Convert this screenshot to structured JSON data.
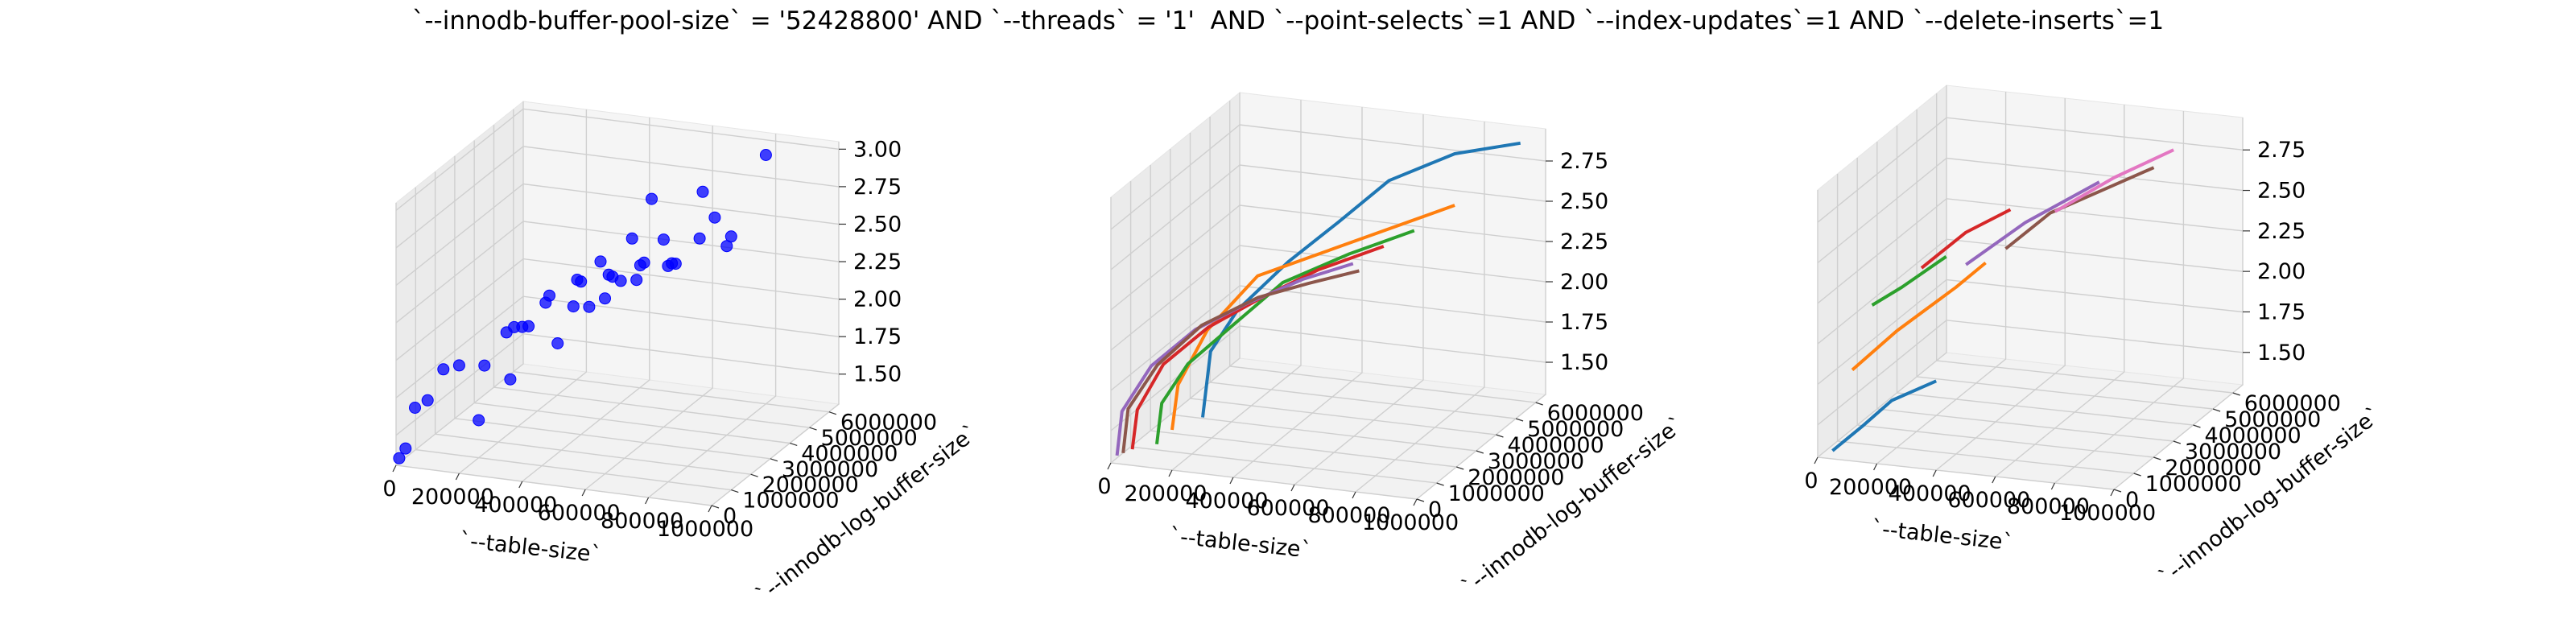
{
  "figure": {
    "title": "`--innodb-buffer-pool-size` = '52428800' AND `--threads` = '1'  AND `--point-selects`=1 AND `--index-updates`=1 AND `--delete-inserts`=1"
  },
  "chart_data": [
    {
      "type": "scatter3d",
      "xlabel": "`--table-size`",
      "ylabel": "`--innodb-log-buffer-size`",
      "zlabel": "",
      "xlim": [
        0,
        1000000
      ],
      "ylim": [
        0,
        6500000
      ],
      "zlim": [
        1.3,
        3.05
      ],
      "x_ticks": [
        "0",
        "200000",
        "400000",
        "600000",
        "800000",
        "1000000"
      ],
      "y_ticks": [
        "0",
        "1000000",
        "2000000",
        "3000000",
        "4000000",
        "5000000",
        "6000000"
      ],
      "z_ticks": [
        "1.50",
        "1.75",
        "2.00",
        "2.25",
        "2.50",
        "2.75",
        "3.00"
      ],
      "grid": true,
      "color": "#0000ff",
      "points": [
        [
          10000,
          0,
          1.35
        ],
        [
          30000,
          0,
          1.42
        ],
        [
          60000,
          0,
          1.7
        ],
        [
          100000,
          0,
          1.76
        ],
        [
          150000,
          0,
          1.98
        ],
        [
          200000,
          0,
          2.02
        ],
        [
          280000,
          0,
          2.04
        ],
        [
          350000,
          0,
          2.28
        ],
        [
          400000,
          0,
          2.33
        ],
        [
          420000,
          0,
          2.34
        ],
        [
          200000,
          1000000,
          1.55
        ],
        [
          300000,
          1000000,
          1.85
        ],
        [
          450000,
          1000000,
          2.13
        ],
        [
          500000,
          1000000,
          2.39
        ],
        [
          550000,
          1000000,
          2.4
        ],
        [
          600000,
          1000000,
          2.47
        ],
        [
          650000,
          1000000,
          2.6
        ],
        [
          700000,
          1000000,
          2.62
        ],
        [
          800000,
          1000000,
          2.74
        ],
        [
          900000,
          1000000,
          2.95
        ],
        [
          1000000,
          1000000,
          2.99
        ],
        [
          250000,
          2000000,
          2.08
        ],
        [
          350000,
          2000000,
          2.27
        ],
        [
          450000,
          2000000,
          2.45
        ],
        [
          550000,
          2000000,
          2.51
        ],
        [
          650000,
          2000000,
          2.6
        ],
        [
          750000,
          2000000,
          2.64
        ],
        [
          300000,
          3000000,
          2.2
        ],
        [
          400000,
          3000000,
          2.32
        ],
        [
          500000,
          3000000,
          2.38
        ],
        [
          600000,
          3000000,
          2.5
        ],
        [
          700000,
          3000000,
          2.52
        ],
        [
          400000,
          4000000,
          2.35
        ],
        [
          500000,
          4000000,
          2.53
        ],
        [
          600000,
          4000000,
          2.55
        ],
        [
          800000,
          4000000,
          2.56
        ],
        [
          500000,
          5000000,
          2.69
        ],
        [
          700000,
          5000000,
          2.62
        ],
        [
          600000,
          6000000,
          2.66
        ],
        [
          800000,
          6000000,
          2.96
        ]
      ]
    },
    {
      "type": "line3d",
      "xlabel": "`--table-size`",
      "ylabel": "`--innodb-log-buffer-size`",
      "zlabel": "",
      "xlim": [
        0,
        1000000
      ],
      "ylim": [
        0,
        6500000
      ],
      "zlim": [
        1.3,
        2.95
      ],
      "x_ticks": [
        "0",
        "200000",
        "400000",
        "600000",
        "800000",
        "1000000"
      ],
      "y_ticks": [
        "0",
        "1000000",
        "2000000",
        "3000000",
        "4000000",
        "5000000",
        "6000000"
      ],
      "z_ticks": [
        "1.50",
        "1.75",
        "2.00",
        "2.25",
        "2.50",
        "2.75"
      ],
      "grid": true,
      "series": [
        {
          "color": "#1f77b4",
          "points": [
            [
              300000,
              0,
              1.65
            ],
            [
              300000,
              400000,
              2.02
            ],
            [
              350000,
              1000000,
              2.23
            ],
            [
              450000,
              2000000,
              2.45
            ],
            [
              550000,
              3000000,
              2.62
            ],
            [
              650000,
              4000000,
              2.8
            ],
            [
              800000,
              5000000,
              2.9
            ],
            [
              950000,
              6000000,
              2.9
            ]
          ]
        },
        {
          "color": "#ff7f0e",
          "points": [
            [
              200000,
              0,
              1.55
            ],
            [
              200000,
              300000,
              1.8
            ],
            [
              250000,
              1000000,
              2.08
            ],
            [
              350000,
              2000000,
              2.34
            ],
            [
              500000,
              3000000,
              2.42
            ],
            [
              650000,
              4000000,
              2.5
            ],
            [
              800000,
              5000000,
              2.58
            ]
          ]
        },
        {
          "color": "#2ca02c",
          "points": [
            [
              150000,
              0,
              1.45
            ],
            [
              150000,
              250000,
              1.68
            ],
            [
              200000,
              800000,
              1.88
            ],
            [
              300000,
              1500000,
              2.07
            ],
            [
              400000,
              2500000,
              2.26
            ],
            [
              550000,
              3500000,
              2.37
            ],
            [
              700000,
              4500000,
              2.45
            ]
          ]
        },
        {
          "color": "#d62728",
          "points": [
            [
              70000,
              0,
              1.4
            ],
            [
              70000,
              250000,
              1.62
            ],
            [
              120000,
              800000,
              1.86
            ],
            [
              220000,
              1500000,
              2.04
            ],
            [
              330000,
              2500000,
              2.15
            ],
            [
              450000,
              3500000,
              2.25
            ],
            [
              600000,
              4500000,
              2.33
            ]
          ]
        },
        {
          "color": "#9467bd",
          "points": [
            [
              20000,
              0,
              1.35
            ],
            [
              20000,
              250000,
              1.6
            ],
            [
              80000,
              800000,
              1.84
            ],
            [
              180000,
              1500000,
              2.02
            ],
            [
              280000,
              2500000,
              2.1
            ],
            [
              400000,
              3500000,
              2.18
            ],
            [
              500000,
              4500000,
              2.2
            ]
          ]
        },
        {
          "color": "#8c564b",
          "points": [
            [
              40000,
              0,
              1.37
            ],
            [
              40000,
              250000,
              1.62
            ],
            [
              100000,
              800000,
              1.85
            ],
            [
              200000,
              1500000,
              2.05
            ],
            [
              320000,
              2500000,
              2.15
            ],
            [
              420000,
              3500000,
              2.16
            ],
            [
              520000,
              4500000,
              2.16
            ]
          ]
        }
      ]
    },
    {
      "type": "line3d",
      "xlabel": "`--table-size`",
      "ylabel": "`--innodb-log-buffer-size`",
      "zlabel": "",
      "xlim": [
        0,
        1000000
      ],
      "ylim": [
        0,
        6500000
      ],
      "zlim": [
        1.3,
        2.95
      ],
      "x_ticks": [
        "0",
        "200000",
        "400000",
        "600000",
        "800000",
        "1000000"
      ],
      "y_ticks": [
        "0",
        "1000000",
        "2000000",
        "3000000",
        "4000000",
        "5000000",
        "6000000"
      ],
      "z_ticks": [
        "1.50",
        "1.75",
        "2.00",
        "2.25",
        "2.50",
        "2.75"
      ],
      "grid": true,
      "series": [
        {
          "color": "#1f77b4",
          "points": [
            [
              50000,
              0,
              1.35
            ],
            [
              150000,
              0,
              1.52
            ],
            [
              250000,
              0,
              1.7
            ],
            [
              400000,
              0,
              1.85
            ]
          ]
        },
        {
          "color": "#ff7f0e",
          "points": [
            [
              50000,
              1000000,
              1.75
            ],
            [
              200000,
              1000000,
              2.02
            ],
            [
              400000,
              1000000,
              2.33
            ],
            [
              500000,
              1000000,
              2.5
            ]
          ]
        },
        {
          "color": "#2ca02c",
          "points": [
            [
              50000,
              2000000,
              2.05
            ],
            [
              150000,
              2000000,
              2.18
            ],
            [
              300000,
              2000000,
              2.4
            ]
          ]
        },
        {
          "color": "#d62728",
          "points": [
            [
              150000,
              3000000,
              2.2
            ],
            [
              300000,
              3000000,
              2.45
            ],
            [
              450000,
              3000000,
              2.62
            ]
          ]
        },
        {
          "color": "#9467bd",
          "points": [
            [
              300000,
              3000000,
              2.25
            ],
            [
              500000,
              3000000,
              2.55
            ],
            [
              750000,
              3000000,
              2.85
            ]
          ]
        },
        {
          "color": "#8c564b",
          "points": [
            [
              300000,
              5000000,
              2.15
            ],
            [
              450000,
              5000000,
              2.4
            ],
            [
              650000,
              5000000,
              2.6
            ],
            [
              800000,
              5000000,
              2.75
            ]
          ]
        },
        {
          "color": "#e377c2",
          "points": [
            [
              400000,
              6000000,
              2.3
            ],
            [
              600000,
              6000000,
              2.55
            ],
            [
              800000,
              6000000,
              2.76
            ]
          ]
        }
      ]
    }
  ]
}
